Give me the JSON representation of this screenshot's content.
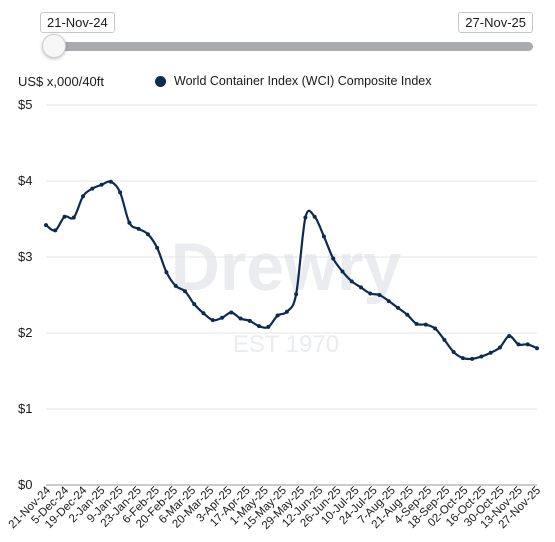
{
  "controls": {
    "range_start": "21-Nov-24",
    "range_end": "27-Nov-25"
  },
  "unit_label": "US$ x,000/40ft",
  "legend_label": "World Container Index (WCI) Composite Index",
  "watermark": {
    "brand": "Drewry",
    "est": "EST 1970"
  },
  "colors": {
    "series": "#0d2a4f",
    "grid": "#e4e4e4",
    "track": "#a9abae"
  },
  "chart_data": {
    "type": "line",
    "title": "",
    "xlabel": "",
    "ylabel": "US$ x,000/40ft",
    "ylim": [
      0,
      5
    ],
    "y_ticks": [
      "$0",
      "$1",
      "$2",
      "$3",
      "$4",
      "$5"
    ],
    "grid": true,
    "legend_placement": "top",
    "x_tick_labels": [
      "21-Nov-24",
      "5-Dec-24",
      "19-Dec-24",
      "2-Jan-25",
      "9-Jan-25",
      "23-Jan-25",
      "6-Feb-25",
      "20-Feb-25",
      "6-Mar-25",
      "20-Mar-25",
      "3-Apr-25",
      "17-Apr-25",
      "1-May-25",
      "15-May-25",
      "29-May-25",
      "12-Jun-25",
      "26-Jun-25",
      "10-Jul-25",
      "24-Jul-25",
      "7-Aug-25",
      "21-Aug-25",
      "4-Sep-25",
      "18-Sep-25",
      "02-Oct-25",
      "16-Oct-25",
      "30-Oct-25",
      "13-Nov-25",
      "27-Nov-25"
    ],
    "series": [
      {
        "name": "World Container Index (WCI) Composite Index",
        "x": [
          "2024-11-21",
          "2024-11-28",
          "2024-12-05",
          "2024-12-12",
          "2024-12-19",
          "2024-12-26",
          "2025-01-02",
          "2025-01-09",
          "2025-01-16",
          "2025-01-23",
          "2025-01-30",
          "2025-02-06",
          "2025-02-13",
          "2025-02-20",
          "2025-02-27",
          "2025-03-06",
          "2025-03-13",
          "2025-03-20",
          "2025-03-27",
          "2025-04-03",
          "2025-04-10",
          "2025-04-17",
          "2025-04-24",
          "2025-05-01",
          "2025-05-08",
          "2025-05-15",
          "2025-05-22",
          "2025-05-29",
          "2025-06-05",
          "2025-06-12",
          "2025-06-19",
          "2025-06-26",
          "2025-07-03",
          "2025-07-10",
          "2025-07-17",
          "2025-07-24",
          "2025-07-31",
          "2025-08-07",
          "2025-08-14",
          "2025-08-21",
          "2025-08-28",
          "2025-09-04",
          "2025-09-11",
          "2025-09-18",
          "2025-09-25",
          "2025-10-02",
          "2025-10-09",
          "2025-10-16",
          "2025-10-23",
          "2025-10-30",
          "2025-11-06",
          "2025-11-13",
          "2025-11-20",
          "2025-11-27"
        ],
        "values": [
          3.42,
          3.35,
          3.53,
          3.52,
          3.8,
          3.9,
          3.95,
          3.99,
          3.85,
          3.45,
          3.37,
          3.3,
          3.12,
          2.8,
          2.62,
          2.55,
          2.38,
          2.26,
          2.17,
          2.2,
          2.27,
          2.19,
          2.16,
          2.09,
          2.08,
          2.23,
          2.28,
          2.51,
          3.52,
          3.53,
          3.27,
          2.98,
          2.81,
          2.68,
          2.6,
          2.52,
          2.5,
          2.42,
          2.33,
          2.24,
          2.12,
          2.11,
          2.06,
          1.91,
          1.75,
          1.67,
          1.66,
          1.69,
          1.74,
          1.81,
          1.96,
          1.85,
          1.85,
          1.8
        ]
      }
    ]
  }
}
